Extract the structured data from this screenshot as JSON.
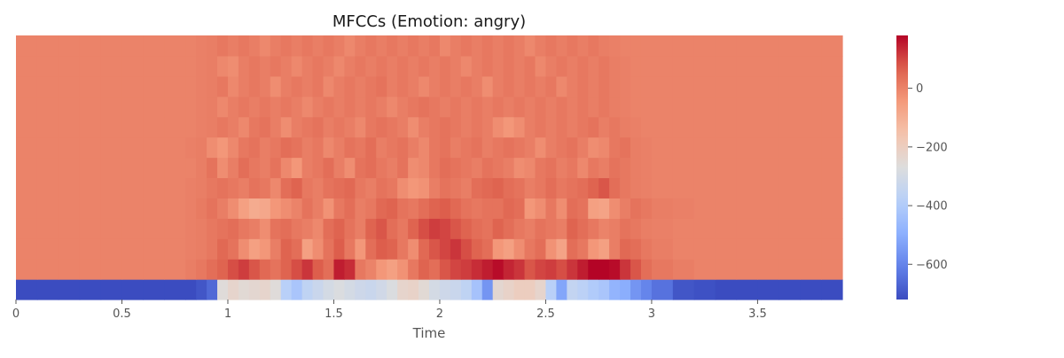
{
  "chart_data": {
    "type": "heatmap",
    "title": "MFCCs (Emotion: angry)",
    "xlabel": "Time",
    "ylabel": "",
    "xlim": [
      0,
      3.9
    ],
    "x_ticks": [
      0,
      0.5,
      1,
      1.5,
      2,
      2.5,
      3,
      3.5
    ],
    "x_tick_labels": [
      "0",
      "0.5",
      "1",
      "1.5",
      "2",
      "2.5",
      "3",
      "3.5"
    ],
    "n_coefficients": 13,
    "colormap": "coolwarm",
    "colorbar": {
      "range": [
        -720,
        180
      ],
      "ticks": [
        0,
        -200,
        -400,
        -600
      ],
      "tick_labels": [
        "0",
        "−200",
        "−400",
        "−600"
      ]
    },
    "silent_value": 0,
    "frame_times": [
      0.0,
      0.1,
      0.2,
      0.3,
      0.4,
      0.5,
      0.6,
      0.7,
      0.8,
      0.85,
      0.9,
      0.95,
      1.0,
      1.05,
      1.1,
      1.15,
      1.2,
      1.25,
      1.3,
      1.35,
      1.4,
      1.45,
      1.5,
      1.55,
      1.6,
      1.65,
      1.7,
      1.75,
      1.8,
      1.85,
      1.9,
      1.95,
      2.0,
      2.05,
      2.1,
      2.15,
      2.2,
      2.25,
      2.3,
      2.35,
      2.4,
      2.45,
      2.5,
      2.55,
      2.6,
      2.65,
      2.7,
      2.75,
      2.8,
      2.85,
      2.9,
      2.95,
      3.0,
      3.1,
      3.2,
      3.3,
      3.4,
      3.5,
      3.6,
      3.7,
      3.8,
      3.9
    ],
    "mfcc0": [
      -720,
      -720,
      -720,
      -720,
      -720,
      -720,
      -720,
      -720,
      -720,
      -700,
      -660,
      -260,
      -230,
      -250,
      -240,
      -230,
      -260,
      -380,
      -420,
      -360,
      -330,
      -300,
      -280,
      -300,
      -320,
      -330,
      -310,
      -280,
      -230,
      -220,
      -250,
      -300,
      -320,
      -330,
      -360,
      -430,
      -560,
      -240,
      -220,
      -200,
      -200,
      -230,
      -380,
      -520,
      -350,
      -370,
      -400,
      -420,
      -480,
      -500,
      -560,
      -600,
      -640,
      -700,
      -710,
      -720,
      -720,
      -720,
      -720,
      -720,
      -720,
      -720
    ],
    "rows_1_to_12": [
      [
        0,
        0,
        0,
        0,
        0,
        0,
        0,
        0,
        10,
        20,
        40,
        60,
        90,
        110,
        80,
        50,
        30,
        60,
        90,
        120,
        70,
        40,
        150,
        130,
        20,
        0,
        -40,
        -60,
        -30,
        20,
        60,
        40,
        80,
        100,
        110,
        130,
        150,
        170,
        140,
        120,
        80,
        100,
        110,
        90,
        120,
        150,
        180,
        190,
        170,
        120,
        80,
        40,
        20,
        10,
        0,
        0,
        0,
        0,
        0,
        0,
        0,
        0
      ],
      [
        0,
        0,
        0,
        0,
        0,
        0,
        0,
        0,
        5,
        10,
        20,
        50,
        30,
        -20,
        -60,
        -40,
        10,
        60,
        40,
        -60,
        -20,
        30,
        70,
        20,
        -40,
        40,
        70,
        60,
        20,
        -20,
        50,
        80,
        100,
        120,
        90,
        60,
        40,
        -40,
        -60,
        -20,
        20,
        40,
        -30,
        -70,
        40,
        20,
        -40,
        -60,
        10,
        50,
        40,
        20,
        10,
        0,
        0,
        0,
        0,
        0,
        0,
        0,
        0,
        0
      ],
      [
        0,
        0,
        0,
        0,
        0,
        0,
        0,
        0,
        5,
        10,
        20,
        30,
        40,
        20,
        10,
        -20,
        30,
        40,
        20,
        10,
        -10,
        40,
        60,
        30,
        10,
        60,
        80,
        40,
        20,
        60,
        90,
        110,
        100,
        80,
        60,
        40,
        30,
        60,
        40,
        20,
        10,
        30,
        20,
        10,
        60,
        40,
        20,
        0,
        10,
        30,
        20,
        10,
        5,
        0,
        0,
        0,
        0,
        0,
        0,
        0,
        0,
        0
      ],
      [
        0,
        0,
        0,
        0,
        0,
        0,
        0,
        0,
        5,
        15,
        30,
        10,
        -20,
        -60,
        -90,
        -80,
        -40,
        -20,
        0,
        30,
        10,
        -30,
        20,
        40,
        10,
        20,
        50,
        60,
        30,
        20,
        40,
        60,
        70,
        50,
        30,
        20,
        30,
        30,
        50,
        40,
        -40,
        -20,
        20,
        -20,
        40,
        30,
        -60,
        -70,
        -20,
        10,
        30,
        20,
        10,
        5,
        0,
        0,
        0,
        0,
        0,
        0,
        0,
        0
      ],
      [
        0,
        0,
        0,
        0,
        0,
        0,
        0,
        0,
        5,
        10,
        20,
        30,
        20,
        10,
        30,
        20,
        -10,
        40,
        60,
        20,
        10,
        30,
        40,
        50,
        20,
        10,
        30,
        20,
        -20,
        -40,
        -30,
        10,
        30,
        20,
        10,
        40,
        50,
        60,
        40,
        30,
        10,
        20,
        40,
        20,
        30,
        40,
        60,
        80,
        40,
        20,
        10,
        5,
        0,
        0,
        0,
        0,
        0,
        0,
        0,
        0,
        0,
        0
      ],
      [
        0,
        0,
        0,
        0,
        0,
        0,
        0,
        0,
        0,
        10,
        30,
        -20,
        10,
        40,
        20,
        10,
        30,
        -10,
        -40,
        10,
        20,
        40,
        10,
        -20,
        30,
        40,
        20,
        10,
        30,
        -20,
        -10,
        20,
        40,
        30,
        20,
        10,
        30,
        20,
        10,
        -20,
        -10,
        20,
        30,
        10,
        20,
        -10,
        20,
        10,
        30,
        20,
        10,
        5,
        0,
        0,
        0,
        0,
        0,
        0,
        0,
        0,
        0,
        0
      ],
      [
        0,
        0,
        0,
        0,
        0,
        0,
        0,
        0,
        5,
        10,
        -20,
        -40,
        -10,
        20,
        30,
        10,
        20,
        40,
        30,
        10,
        20,
        -10,
        10,
        30,
        20,
        40,
        10,
        20,
        30,
        10,
        -10,
        20,
        30,
        10,
        20,
        30,
        10,
        20,
        30,
        20,
        10,
        -20,
        10,
        20,
        30,
        10,
        -20,
        -10,
        20,
        30,
        10,
        5,
        0,
        0,
        0,
        0,
        0,
        0,
        0,
        0,
        0,
        0
      ],
      [
        0,
        0,
        0,
        0,
        0,
        0,
        0,
        0,
        0,
        5,
        10,
        20,
        10,
        -10,
        20,
        30,
        10,
        -20,
        10,
        20,
        30,
        10,
        20,
        10,
        -10,
        20,
        30,
        20,
        10,
        -20,
        10,
        20,
        30,
        20,
        10,
        20,
        10,
        -20,
        -40,
        -20,
        10,
        20,
        10,
        20,
        10,
        20,
        30,
        10,
        20,
        10,
        5,
        0,
        0,
        0,
        0,
        0,
        0,
        0,
        0,
        0,
        0,
        0
      ],
      [
        0,
        0,
        0,
        0,
        0,
        0,
        0,
        0,
        0,
        5,
        10,
        -10,
        10,
        20,
        10,
        20,
        10,
        20,
        10,
        -10,
        10,
        20,
        10,
        20,
        10,
        20,
        10,
        -10,
        10,
        20,
        30,
        20,
        10,
        20,
        10,
        20,
        10,
        20,
        10,
        20,
        10,
        20,
        10,
        20,
        10,
        20,
        10,
        20,
        10,
        5,
        0,
        0,
        0,
        0,
        0,
        0,
        0,
        0,
        0,
        0,
        0,
        0
      ],
      [
        0,
        0,
        0,
        0,
        0,
        0,
        0,
        0,
        0,
        5,
        10,
        20,
        -10,
        10,
        20,
        10,
        -20,
        10,
        20,
        10,
        20,
        -10,
        10,
        20,
        10,
        20,
        30,
        10,
        20,
        10,
        -10,
        10,
        20,
        10,
        20,
        10,
        -20,
        10,
        20,
        10,
        20,
        10,
        20,
        -10,
        10,
        20,
        10,
        20,
        10,
        5,
        0,
        0,
        0,
        0,
        0,
        0,
        0,
        0,
        0,
        0,
        0,
        0
      ],
      [
        0,
        0,
        0,
        0,
        0,
        0,
        0,
        0,
        0,
        5,
        10,
        -10,
        -20,
        10,
        20,
        10,
        20,
        10,
        -10,
        10,
        20,
        10,
        -10,
        10,
        20,
        10,
        20,
        10,
        20,
        10,
        20,
        10,
        20,
        10,
        -10,
        10,
        20,
        10,
        20,
        10,
        20,
        -10,
        10,
        20,
        10,
        20,
        10,
        20,
        10,
        5,
        0,
        0,
        0,
        0,
        0,
        0,
        0,
        0,
        0,
        0,
        0,
        0
      ],
      [
        0,
        0,
        0,
        0,
        0,
        0,
        0,
        0,
        0,
        5,
        10,
        20,
        10,
        20,
        10,
        -10,
        10,
        20,
        10,
        20,
        10,
        20,
        10,
        -10,
        10,
        20,
        10,
        20,
        10,
        20,
        10,
        20,
        -10,
        10,
        20,
        10,
        20,
        10,
        20,
        10,
        -10,
        10,
        20,
        10,
        20,
        10,
        20,
        10,
        5,
        0,
        0,
        0,
        0,
        0,
        0,
        0,
        0,
        0,
        0,
        0,
        0,
        0
      ]
    ]
  }
}
